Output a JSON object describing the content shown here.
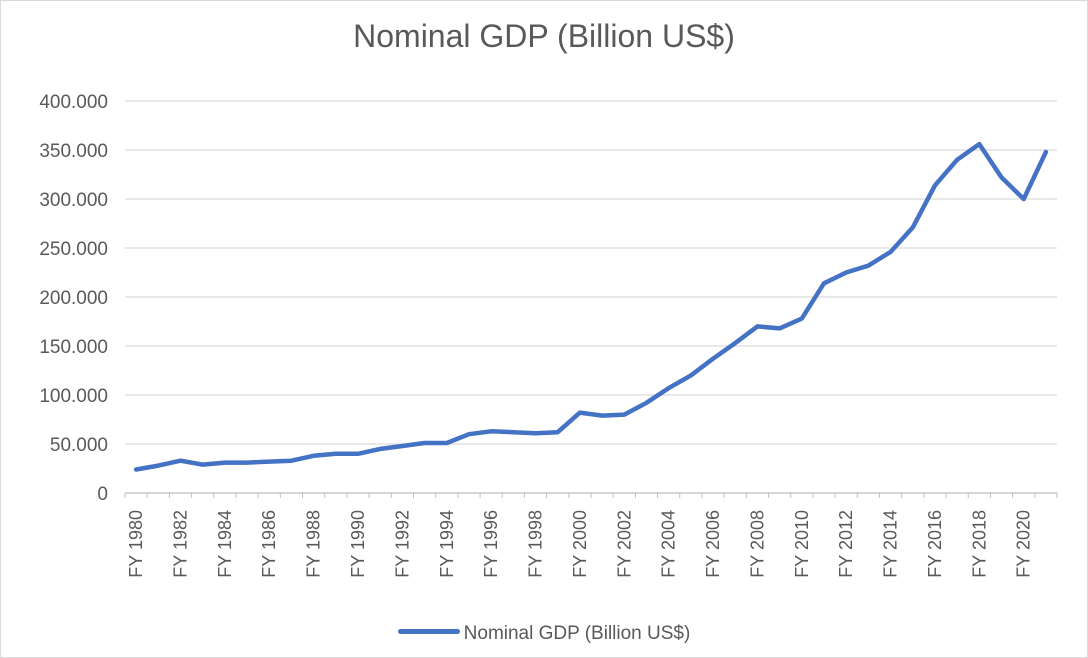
{
  "colors": {
    "series": "#4472C4",
    "grid": "#d9d9d9",
    "axis": "#bfbfbf",
    "text": "#595959"
  },
  "chart_data": {
    "type": "line",
    "title": "Nominal GDP (Billion US$)",
    "xlabel": "",
    "ylabel": "",
    "ylim": [
      0,
      400
    ],
    "y_ticks": [
      0,
      50,
      100,
      150,
      200,
      250,
      300,
      350,
      400
    ],
    "y_tick_labels": [
      "0",
      "50.000",
      "100.000",
      "150.000",
      "200.000",
      "250.000",
      "300.000",
      "350.000",
      "400.000"
    ],
    "x_tick_labels": [
      "FY 1980",
      "FY 1982",
      "FY 1984",
      "FY 1986",
      "FY 1988",
      "FY 1990",
      "FY 1992",
      "FY 1994",
      "FY 1996",
      "FY 1998",
      "FY 2000",
      "FY 2002",
      "FY 2004",
      "FY 2006",
      "FY 2008",
      "FY 2010",
      "FY 2012",
      "FY 2014",
      "FY 2016",
      "FY 2018",
      "FY 2020"
    ],
    "categories": [
      "FY 1980",
      "FY 1981",
      "FY 1982",
      "FY 1983",
      "FY 1984",
      "FY 1985",
      "FY 1986",
      "FY 1987",
      "FY 1988",
      "FY 1989",
      "FY 1990",
      "FY 1991",
      "FY 1992",
      "FY 1993",
      "FY 1994",
      "FY 1995",
      "FY 1996",
      "FY 1997",
      "FY 1998",
      "FY 1999",
      "FY 2000",
      "FY 2001",
      "FY 2002",
      "FY 2003",
      "FY 2004",
      "FY 2005",
      "FY 2006",
      "FY 2007",
      "FY 2008",
      "FY 2009",
      "FY 2010",
      "FY 2011",
      "FY 2012",
      "FY 2013",
      "FY 2014",
      "FY 2015",
      "FY 2016",
      "FY 2017",
      "FY 2018",
      "FY 2019",
      "FY 2020",
      "FY 2021"
    ],
    "series": [
      {
        "name": "Nominal GDP (Billion US$)",
        "values": [
          24,
          28,
          33,
          29,
          31,
          31,
          32,
          33,
          38,
          40,
          40,
          45,
          48,
          51,
          51,
          60,
          63,
          62,
          61,
          62,
          82,
          79,
          80,
          92,
          107,
          120,
          137,
          153,
          170,
          168,
          178,
          214,
          225,
          232,
          246,
          271,
          314,
          340,
          356,
          322,
          300,
          348
        ]
      }
    ],
    "grid": true,
    "legend": "bottom"
  }
}
